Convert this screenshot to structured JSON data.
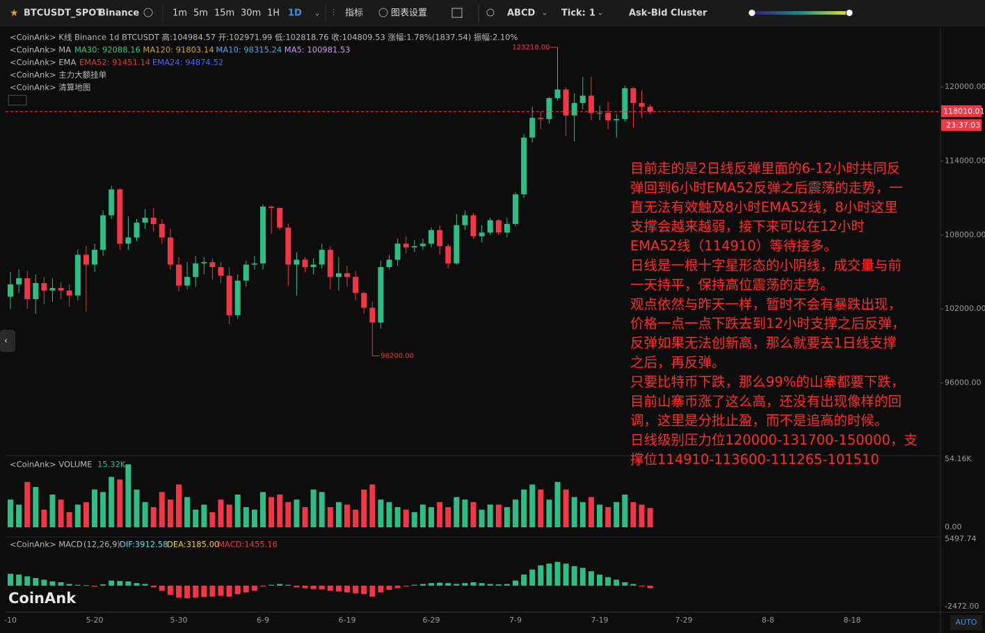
{
  "toolbar": {
    "symbol": "BTCUSDT_SPOT",
    "exchange": "Binance",
    "intervals": [
      "1m",
      "5m",
      "15m",
      "30m",
      "1H",
      "1D"
    ],
    "active_interval": 5,
    "indicators": "指标",
    "settings": "图表设置",
    "drawing": "ABCD",
    "tick_label": "Tick:",
    "tick_value": "1",
    "cluster": "Ask-Bid Cluster"
  },
  "legend": {
    "kline": "<CoinAnk> K线   Binance 1d BTCUSDT 高:104984.57 开:102971.99 低:102818.76 收:104809.53 涨幅:1.78%(1837.54) 振幅:2.10%",
    "ma_prefix": "<CoinAnk> MA",
    "ma": [
      {
        "text": "MA30: 92088.16",
        "color": "#3ec47c"
      },
      {
        "text": "MA120: 91803.14",
        "color": "#c8a53a"
      },
      {
        "text": "MA10: 98315.24",
        "color": "#5aa3d6"
      },
      {
        "text": "MA5: 100981.53",
        "color": "#c39be8"
      }
    ],
    "ema_prefix": "<CoinAnk> EMA",
    "ema": [
      {
        "text": "EMA52: 91451.14",
        "color": "#e53935"
      },
      {
        "text": "EMA24: 94874.52",
        "color": "#4a63ff"
      }
    ],
    "orders": "<CoinAnk> 主力大额挂单",
    "liq": "<CoinAnk> 清算地图"
  },
  "chart_data": {
    "type": "candlestick",
    "up_color": "#2ebd85",
    "down_color": "#f23645",
    "x_labels": [
      "-10",
      "5-20",
      "5-30",
      "6-9",
      "6-19",
      "6-29",
      "7-9",
      "7-19",
      "7-29",
      "8-8",
      "8-18"
    ],
    "candles": [
      [
        103000,
        105000,
        102000,
        104000
      ],
      [
        104000,
        105200,
        103300,
        104500
      ],
      [
        104500,
        105100,
        102000,
        102800
      ],
      [
        102800,
        104800,
        101600,
        104100
      ],
      [
        104100,
        104600,
        102400,
        103500
      ],
      [
        103500,
        104500,
        102600,
        103700
      ],
      [
        103700,
        104200,
        102800,
        103500
      ],
      [
        103500,
        104000,
        102200,
        103100
      ],
      [
        103100,
        106800,
        102700,
        106400
      ],
      [
        106400,
        107100,
        101800,
        105600
      ],
      [
        105600,
        107300,
        105000,
        106800
      ],
      [
        106800,
        110000,
        106300,
        109600
      ],
      [
        109600,
        112000,
        109300,
        111700
      ],
      [
        111700,
        111800,
        106800,
        107300
      ],
      [
        107300,
        109500,
        106800,
        107800
      ],
      [
        107800,
        109300,
        107500,
        109000
      ],
      [
        109000,
        110100,
        108500,
        109400
      ],
      [
        109400,
        110200,
        108300,
        108900
      ],
      [
        108900,
        109300,
        107300,
        107800
      ],
      [
        107800,
        108500,
        105200,
        105600
      ],
      [
        105600,
        106200,
        103400,
        103900
      ],
      [
        103900,
        105800,
        103600,
        104600
      ],
      [
        104600,
        106300,
        103800,
        105700
      ],
      [
        105700,
        106200,
        104800,
        105800
      ],
      [
        105800,
        106100,
        104400,
        105400
      ],
      [
        105400,
        105800,
        104100,
        104700
      ],
      [
        104700,
        105400,
        100800,
        101500
      ],
      [
        101500,
        104800,
        101200,
        104300
      ],
      [
        104300,
        105900,
        103800,
        105600
      ],
      [
        105600,
        106300,
        105200,
        105700
      ],
      [
        105700,
        110500,
        105200,
        110300
      ],
      [
        110300,
        110400,
        108100,
        110200
      ],
      [
        110200,
        110200,
        108400,
        108600
      ],
      [
        108600,
        108900,
        103900,
        105600
      ],
      [
        105600,
        106600,
        103100,
        106000
      ],
      [
        106000,
        106200,
        105000,
        105400
      ],
      [
        105400,
        106100,
        104800,
        105600
      ],
      [
        105600,
        107300,
        105300,
        106800
      ],
      [
        106800,
        107100,
        103600,
        104600
      ],
      [
        104600,
        106200,
        103500,
        104900
      ],
      [
        104900,
        105500,
        103800,
        104600
      ],
      [
        104600,
        105100,
        102700,
        103300
      ],
      [
        103300,
        103400,
        101600,
        102100
      ],
      [
        102100,
        102600,
        98200,
        100900
      ],
      [
        100900,
        105900,
        100400,
        105400
      ],
      [
        105400,
        106400,
        105200,
        106000
      ],
      [
        106000,
        107700,
        105500,
        107300
      ],
      [
        107300,
        107900,
        106500,
        107000
      ],
      [
        107000,
        107600,
        106600,
        107100
      ],
      [
        107100,
        107700,
        106800,
        107300
      ],
      [
        107300,
        108600,
        107000,
        108400
      ],
      [
        108400,
        108800,
        106400,
        107100
      ],
      [
        107100,
        107300,
        105300,
        105700
      ],
      [
        105700,
        109700,
        105600,
        108800
      ],
      [
        108800,
        110000,
        108400,
        109600
      ],
      [
        109600,
        109800,
        107700,
        107900
      ],
      [
        107900,
        108800,
        107400,
        108200
      ],
      [
        108200,
        109400,
        108000,
        109200
      ],
      [
        109200,
        109300,
        108000,
        108200
      ],
      [
        108200,
        109400,
        107800,
        108900
      ],
      [
        108900,
        111500,
        108700,
        111300
      ],
      [
        111300,
        116200,
        111000,
        115900
      ],
      [
        115900,
        118400,
        115500,
        117500
      ],
      [
        117500,
        118000,
        116600,
        117400
      ],
      [
        117400,
        119200,
        117000,
        119100
      ],
      [
        119100,
        123218,
        118900,
        119800
      ],
      [
        119800,
        120000,
        116000,
        117700
      ],
      [
        117700,
        119500,
        115600,
        118700
      ],
      [
        118700,
        120800,
        118200,
        119300
      ],
      [
        119300,
        120800,
        117300,
        117900
      ],
      [
        117900,
        118500,
        117300,
        117900
      ],
      [
        117900,
        118800,
        116600,
        117300
      ],
      [
        117300,
        117800,
        115900,
        117400
      ],
      [
        117400,
        120100,
        117200,
        119900
      ],
      [
        119900,
        120000,
        116700,
        118700
      ],
      [
        118700,
        119700,
        117500,
        118400
      ],
      [
        118400,
        118600,
        117800,
        118000
      ]
    ],
    "ylim": [
      90000,
      124800
    ],
    "yticks": [
      {
        "value": 120000,
        "label": "120000.00"
      },
      {
        "value": 114000,
        "label": "114000.00"
      },
      {
        "value": 108000,
        "label": "108000.00"
      },
      {
        "value": 102000,
        "label": "102000.00"
      },
      {
        "value": 96000,
        "label": "96000.00"
      }
    ],
    "last_price": {
      "value": 118010.01,
      "label": "118010.01"
    },
    "countdown": "23:37:03",
    "high_marker": {
      "value": 123218,
      "label": "123218.00"
    },
    "low_marker": {
      "value": 98200,
      "label": "98200.00"
    }
  },
  "volume": {
    "legend": "<CoinAnk> VOLUME",
    "last": {
      "value": 15.32,
      "label": "15.32K"
    },
    "ylim": [
      0,
      54.16
    ],
    "yticks": [
      {
        "value": 54.16,
        "label": "54.16K"
      },
      {
        "value": 0,
        "label": "0.00"
      }
    ],
    "values": [
      22,
      18,
      36,
      32,
      14,
      26,
      22,
      12,
      18,
      20,
      30,
      28,
      40,
      38,
      50,
      30,
      20,
      16,
      28,
      22,
      34,
      24,
      14,
      18,
      12,
      22,
      18,
      26,
      16,
      14,
      28,
      24,
      26,
      20,
      22,
      16,
      30,
      28,
      16,
      20,
      18,
      14,
      30,
      34,
      22,
      20,
      16,
      14,
      12,
      18,
      16,
      20,
      16,
      24,
      22,
      20,
      14,
      18,
      18,
      16,
      22,
      30,
      34,
      30,
      22,
      36,
      30,
      24,
      20,
      24,
      18,
      16,
      20,
      26,
      20,
      18,
      15.32
    ]
  },
  "macd": {
    "legend": "<CoinAnk> MACD",
    "params": "(12,26,9)",
    "dif": "DIF:3912.58",
    "dea": "DEA:3185.00",
    "hist": "MACD:1455.16",
    "ylim": [
      -2472,
      5497.74
    ],
    "yticks": [
      {
        "value": 5497.74,
        "label": "5497.74"
      },
      {
        "value": -2472,
        "label": "-2472.00"
      }
    ],
    "values": [
      1400,
      1300,
      1100,
      900,
      700,
      500,
      400,
      200,
      100,
      50,
      -100,
      150,
      600,
      550,
      500,
      300,
      200,
      -200,
      -600,
      -1100,
      -1400,
      -1500,
      -1400,
      -1350,
      -1300,
      -1200,
      -1300,
      -1000,
      -800,
      -600,
      -100,
      100,
      200,
      100,
      -200,
      -300,
      -400,
      -450,
      -600,
      -700,
      -800,
      -900,
      -1000,
      -1300,
      -800,
      -500,
      -300,
      -100,
      100,
      200,
      300,
      350,
      300,
      200,
      300,
      400,
      300,
      200,
      150,
      200,
      600,
      1300,
      1900,
      2400,
      2600,
      2800,
      2600,
      2300,
      2100,
      1700,
      1300,
      1000,
      700,
      400,
      200,
      -100,
      -300
    ]
  },
  "annotation": [
    "目前走的是2日线反弹里面的6-12小时共同反",
    "弹回到6小时EMA52反弹之后震荡的走势，一",
    "直无法有效触及8小时EMA52线，8小时这里",
    "支撑会越来越弱，接下来可以在12小时",
    "EMA52线（114910）等待接多。",
    "日线是一根十字星形态的小阴线，成交量与前",
    "一天持平，保持高位震荡的走势。",
    "观点依然与昨天一样，暂时不会有暴跌出现，",
    "价格一点一点下跌去到12小时支撑之后反弹，",
    "反弹如果无法创新高，那么就要去1日线支撑",
    "之后，再反弹。",
    "只要比特币下跌，那么99%的山寨都要下跌，",
    "目前山寨币涨了这么高，还没有出现像样的回",
    "调，这里是分批止盈，而不是追高的时候。",
    "日线级别压力位120000-131700-150000，支",
    "撑位114910-113600-111265-101510"
  ],
  "watermark": "CoinAnk",
  "auto": "AUTO"
}
